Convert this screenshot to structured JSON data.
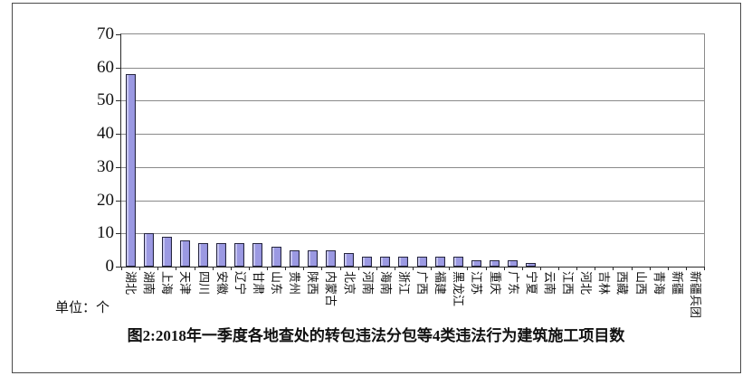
{
  "unit_label": "单位：个",
  "chart_data": {
    "type": "bar",
    "title": "图2:2018年一季度各地查处的转包违法分包等4类违法行为建筑施工项目数",
    "unit": "单位：个",
    "categories": [
      "湖北",
      "湖南",
      "上海",
      "天津",
      "四川",
      "安徽",
      "辽宁",
      "甘肃",
      "山东",
      "贵州",
      "陕西",
      "内蒙古",
      "北京",
      "河南",
      "海南",
      "浙江",
      "广西",
      "福建",
      "黑龙江",
      "江苏",
      "重庆",
      "广东",
      "宁夏",
      "云南",
      "江西",
      "河北",
      "吉林",
      "西藏",
      "山西",
      "青海",
      "新疆",
      "新疆兵团"
    ],
    "values": [
      58,
      10,
      9,
      8,
      7,
      7,
      7,
      7,
      6,
      5,
      5,
      5,
      4,
      3,
      3,
      3,
      3,
      3,
      3,
      2,
      2,
      2,
      1,
      0,
      0,
      0,
      0,
      0,
      0,
      0,
      0,
      0
    ],
    "ylim": [
      0,
      70
    ],
    "yticks": [
      0,
      10,
      20,
      30,
      40,
      50,
      60,
      70
    ],
    "grid": true,
    "legend": "none",
    "xlabel": "",
    "ylabel": "",
    "bar_color": "#9b99e2",
    "bar_border_color": "#26263f",
    "gridline_color": "#8a8a8a",
    "axis_color": "#2a2a2a",
    "frame_border_color": "#4a4a4a"
  }
}
